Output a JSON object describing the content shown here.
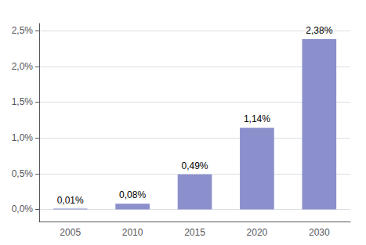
{
  "chart_data": {
    "type": "bar",
    "categories": [
      "2005",
      "2010",
      "2015",
      "2020",
      "2030"
    ],
    "values": [
      0.0001,
      0.0008,
      0.0049,
      0.0114,
      0.0238
    ],
    "value_labels": [
      "0,01%",
      "0,08%",
      "0,49%",
      "1,14%",
      "2,38%"
    ],
    "data_labels": true,
    "color": "#8B8FCC",
    "ylim": [
      -0.0017,
      0.026
    ],
    "yticks": [
      {
        "value": 0.0,
        "label": "0,0%"
      },
      {
        "value": 0.005,
        "label": "0,5%"
      },
      {
        "value": 0.01,
        "label": "1,0%"
      },
      {
        "value": 0.015,
        "label": "1,5%"
      },
      {
        "value": 0.02,
        "label": "2,0%"
      },
      {
        "value": 0.025,
        "label": "2,5%"
      }
    ],
    "grid": true
  }
}
